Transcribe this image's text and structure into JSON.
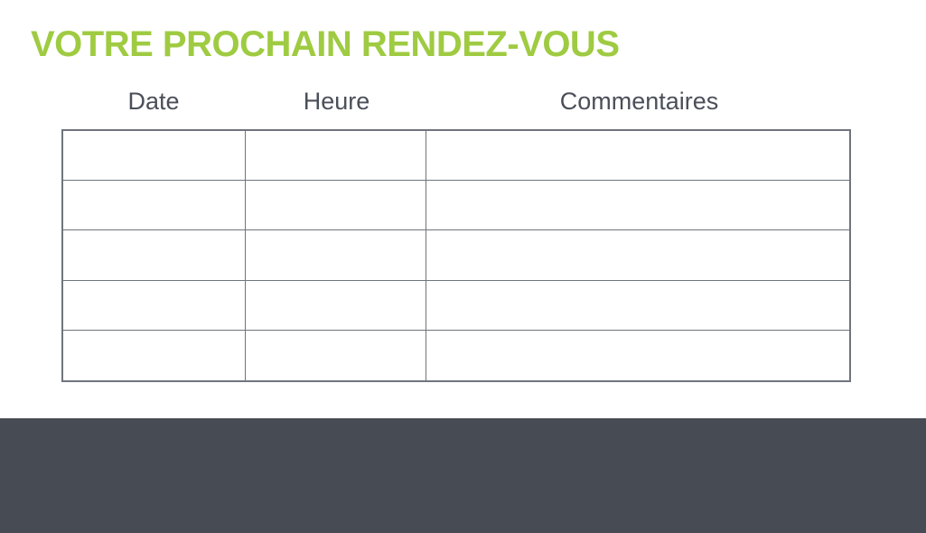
{
  "title": {
    "text": "VOTRE PROCHAIN RENDEZ-VOUS"
  },
  "table": {
    "headers": [
      "Date",
      "Heure",
      "Commentaires"
    ],
    "rows": [
      [
        "",
        "",
        ""
      ],
      [
        "",
        "",
        ""
      ],
      [
        "",
        "",
        ""
      ],
      [
        "",
        "",
        ""
      ],
      [
        "",
        "",
        ""
      ]
    ]
  },
  "colors": {
    "accent_green": "#9fcb42",
    "header_text": "#4b4f59",
    "table_border": "#70747c",
    "footer_bg": "#474b54"
  }
}
